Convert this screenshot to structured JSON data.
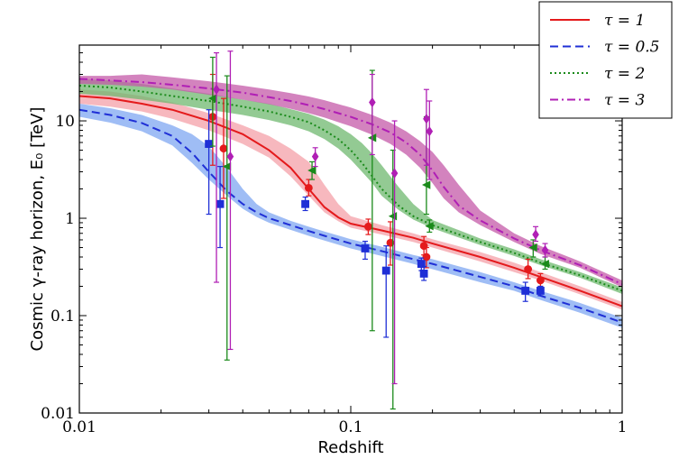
{
  "chart_data": {
    "type": "line",
    "title": "",
    "xlabel": "Redshift",
    "ylabel": "Cosmic γ-ray horizon, E₀ [TeV]",
    "xscale": "log",
    "yscale": "log",
    "xlim": [
      0.01,
      1
    ],
    "ylim": [
      0.01,
      60
    ],
    "x_ticks": [
      {
        "value": 0.01,
        "label": "0.01"
      },
      {
        "value": 0.1,
        "label": "0.1"
      },
      {
        "value": 1,
        "label": "1"
      }
    ],
    "y_ticks": [
      {
        "value": 0.01,
        "label": "0.01"
      },
      {
        "value": 0.1,
        "label": "0.1"
      },
      {
        "value": 1,
        "label": "1"
      },
      {
        "value": 10,
        "label": "10"
      }
    ],
    "legend": {
      "placement": "top-right, outside above the plot"
    },
    "series": [
      {
        "name": "τ = 1",
        "legend_label": "τ = 1",
        "color": "#e41a1c",
        "band_color": "#f4a0a8",
        "line_style": "solid",
        "marker": "circle",
        "curve": {
          "x": [
            0.01,
            0.013,
            0.017,
            0.022,
            0.03,
            0.04,
            0.05,
            0.06,
            0.07,
            0.08,
            0.09,
            0.1,
            0.13,
            0.17,
            0.2,
            0.3,
            0.4,
            0.5,
            0.7,
            1.0
          ],
          "y": [
            18,
            17,
            15,
            13,
            10,
            7.3,
            5.0,
            3.3,
            2.0,
            1.3,
            1.02,
            0.88,
            0.75,
            0.63,
            0.55,
            0.4,
            0.31,
            0.25,
            0.18,
            0.125
          ],
          "band_low": [
            15,
            14,
            12.5,
            10.5,
            8.0,
            5.8,
            4.2,
            2.7,
            1.7,
            1.15,
            0.93,
            0.8,
            0.68,
            0.57,
            0.5,
            0.36,
            0.28,
            0.23,
            0.165,
            0.115
          ],
          "band_high": [
            21,
            20,
            18,
            15.5,
            12,
            9.0,
            7.0,
            5.2,
            3.8,
            2.2,
            1.4,
            1.05,
            0.85,
            0.7,
            0.61,
            0.45,
            0.35,
            0.28,
            0.2,
            0.138
          ]
        },
        "points": [
          {
            "x": 0.031,
            "y": 11,
            "ylo": 3.5,
            "yhi": 30
          },
          {
            "x": 0.034,
            "y": 5.2,
            "ylo": 1.6,
            "yhi": 17
          },
          {
            "x": 0.07,
            "y": 2.05,
            "ylo": 1.7,
            "yhi": 2.5
          },
          {
            "x": 0.116,
            "y": 0.82,
            "ylo": 0.68,
            "yhi": 0.98
          },
          {
            "x": 0.14,
            "y": 0.56,
            "ylo": 0.33,
            "yhi": 0.92
          },
          {
            "x": 0.186,
            "y": 0.52,
            "ylo": 0.42,
            "yhi": 0.65
          },
          {
            "x": 0.19,
            "y": 0.4,
            "ylo": 0.31,
            "yhi": 0.5
          },
          {
            "x": 0.45,
            "y": 0.3,
            "ylo": 0.24,
            "yhi": 0.38
          },
          {
            "x": 0.5,
            "y": 0.23,
            "ylo": 0.2,
            "yhi": 0.27
          }
        ]
      },
      {
        "name": "τ = 0.5",
        "legend_label": "τ = 0.5",
        "color": "#1f2fd6",
        "band_color": "#7fa7f2",
        "line_style": "dashed",
        "marker": "square",
        "curve": {
          "x": [
            0.01,
            0.013,
            0.017,
            0.022,
            0.026,
            0.03,
            0.035,
            0.04,
            0.045,
            0.05,
            0.06,
            0.07,
            0.08,
            0.1,
            0.13,
            0.17,
            0.2,
            0.3,
            0.4,
            0.5,
            0.7,
            1.0
          ],
          "y": [
            13,
            11.5,
            9.5,
            7.0,
            4.7,
            3.0,
            1.9,
            1.4,
            1.15,
            1.0,
            0.85,
            0.74,
            0.66,
            0.55,
            0.46,
            0.38,
            0.34,
            0.25,
            0.2,
            0.16,
            0.12,
            0.085
          ],
          "band_low": [
            11,
            9.6,
            7.8,
            5.6,
            3.7,
            2.5,
            1.7,
            1.25,
            1.03,
            0.9,
            0.76,
            0.66,
            0.59,
            0.49,
            0.41,
            0.34,
            0.3,
            0.22,
            0.18,
            0.145,
            0.107,
            0.075
          ],
          "band_high": [
            15,
            13.5,
            11.5,
            9.0,
            7.3,
            5.5,
            3.3,
            2.0,
            1.4,
            1.15,
            0.94,
            0.82,
            0.73,
            0.61,
            0.51,
            0.42,
            0.38,
            0.28,
            0.22,
            0.18,
            0.135,
            0.095
          ]
        },
        "points": [
          {
            "x": 0.03,
            "y": 5.8,
            "ylo": 1.1,
            "yhi": 13
          },
          {
            "x": 0.033,
            "y": 1.4,
            "ylo": 0.5,
            "yhi": 3.4
          },
          {
            "x": 0.068,
            "y": 1.4,
            "ylo": 1.2,
            "yhi": 1.65
          },
          {
            "x": 0.113,
            "y": 0.49,
            "ylo": 0.38,
            "yhi": 0.58
          },
          {
            "x": 0.135,
            "y": 0.29,
            "ylo": 0.06,
            "yhi": 0.52
          },
          {
            "x": 0.182,
            "y": 0.34,
            "ylo": 0.29,
            "yhi": 0.39
          },
          {
            "x": 0.186,
            "y": 0.27,
            "ylo": 0.23,
            "yhi": 0.32
          },
          {
            "x": 0.44,
            "y": 0.18,
            "ylo": 0.14,
            "yhi": 0.22
          },
          {
            "x": 0.5,
            "y": 0.18,
            "ylo": 0.16,
            "yhi": 0.2
          }
        ]
      },
      {
        "name": "τ = 2",
        "legend_label": "τ = 2",
        "color": "#1a8a1a",
        "band_color": "#6fb86f",
        "line_style": "dotted",
        "marker": "triangle-left",
        "curve": {
          "x": [
            0.01,
            0.013,
            0.017,
            0.022,
            0.03,
            0.04,
            0.05,
            0.06,
            0.07,
            0.08,
            0.09,
            0.1,
            0.11,
            0.12,
            0.13,
            0.15,
            0.17,
            0.2,
            0.3,
            0.4,
            0.5,
            0.7,
            1.0
          ],
          "y": [
            23,
            22,
            20,
            18,
            16,
            14,
            12.5,
            11,
            9.7,
            8.0,
            6.5,
            5.0,
            3.7,
            2.7,
            2.0,
            1.35,
            1.05,
            0.85,
            0.57,
            0.44,
            0.35,
            0.26,
            0.18
          ],
          "band_low": [
            19,
            18,
            16.5,
            15,
            13,
            11.5,
            10.2,
            9.0,
            7.8,
            6.5,
            5.2,
            4.0,
            3.0,
            2.3,
            1.7,
            1.22,
            0.97,
            0.79,
            0.53,
            0.41,
            0.33,
            0.245,
            0.167
          ],
          "band_high": [
            27,
            26,
            24,
            21.5,
            19,
            16.5,
            15,
            13.2,
            11.8,
            10.3,
            8.8,
            7.3,
            5.9,
            4.6,
            3.5,
            2.1,
            1.4,
            0.96,
            0.62,
            0.48,
            0.38,
            0.28,
            0.195
          ]
        },
        "points": [
          {
            "x": 0.031,
            "y": 17,
            "ylo": 5.5,
            "yhi": 45
          },
          {
            "x": 0.035,
            "y": 3.4,
            "ylo": 0.035,
            "yhi": 29
          },
          {
            "x": 0.072,
            "y": 3.1,
            "ylo": 2.5,
            "yhi": 3.8
          },
          {
            "x": 0.12,
            "y": 6.7,
            "ylo": 0.07,
            "yhi": 33
          },
          {
            "x": 0.143,
            "y": 1.05,
            "ylo": 0.011,
            "yhi": 5
          },
          {
            "x": 0.19,
            "y": 2.2,
            "ylo": 1.1,
            "yhi": 11
          },
          {
            "x": 0.195,
            "y": 0.83,
            "ylo": 0.72,
            "yhi": 0.96
          },
          {
            "x": 0.47,
            "y": 0.5,
            "ylo": 0.4,
            "yhi": 0.6
          },
          {
            "x": 0.52,
            "y": 0.34,
            "ylo": 0.3,
            "yhi": 0.4
          }
        ]
      },
      {
        "name": "τ = 3",
        "legend_label": "τ = 3",
        "color": "#b01fb5",
        "band_color": "#c45aa8",
        "line_style": "dash-dot",
        "marker": "diamond",
        "curve": {
          "x": [
            0.01,
            0.013,
            0.017,
            0.022,
            0.03,
            0.04,
            0.05,
            0.06,
            0.07,
            0.08,
            0.1,
            0.12,
            0.14,
            0.16,
            0.18,
            0.2,
            0.22,
            0.25,
            0.3,
            0.4,
            0.5,
            0.7,
            1.0
          ],
          "y": [
            27,
            26,
            25,
            23.5,
            21.5,
            19.5,
            17.5,
            16,
            14.5,
            13.2,
            11,
            9.2,
            7.6,
            6.0,
            4.5,
            3.1,
            2.1,
            1.35,
            0.95,
            0.62,
            0.47,
            0.33,
            0.21
          ],
          "band_low": [
            24,
            23.5,
            22.5,
            21,
            18.5,
            16.5,
            14.8,
            13.3,
            12,
            10.8,
            8.8,
            7.2,
            5.8,
            4.5,
            3.3,
            2.3,
            1.6,
            1.15,
            0.85,
            0.57,
            0.43,
            0.31,
            0.195
          ],
          "band_high": [
            29,
            29,
            30,
            28,
            25.5,
            23,
            21,
            19.3,
            17.8,
            16.3,
            13.7,
            11.5,
            9.6,
            7.8,
            6.2,
            4.8,
            3.5,
            2.2,
            1.2,
            0.7,
            0.52,
            0.36,
            0.23
          ]
        },
        "points": [
          {
            "x": 0.032,
            "y": 21,
            "ylo": 0.22,
            "yhi": 50
          },
          {
            "x": 0.036,
            "y": 4.3,
            "ylo": 0.045,
            "yhi": 52
          },
          {
            "x": 0.074,
            "y": 4.3,
            "ylo": 3.4,
            "yhi": 5.3
          },
          {
            "x": 0.12,
            "y": 15.5,
            "ylo": 4.5,
            "yhi": 30
          },
          {
            "x": 0.145,
            "y": 2.9,
            "ylo": 0.02,
            "yhi": 10
          },
          {
            "x": 0.19,
            "y": 10.5,
            "ylo": 3.5,
            "yhi": 21
          },
          {
            "x": 0.195,
            "y": 7.8,
            "ylo": 2.5,
            "yhi": 16
          },
          {
            "x": 0.48,
            "y": 0.68,
            "ylo": 0.58,
            "yhi": 0.82
          },
          {
            "x": 0.52,
            "y": 0.47,
            "ylo": 0.4,
            "yhi": 0.55
          }
        ]
      }
    ]
  }
}
